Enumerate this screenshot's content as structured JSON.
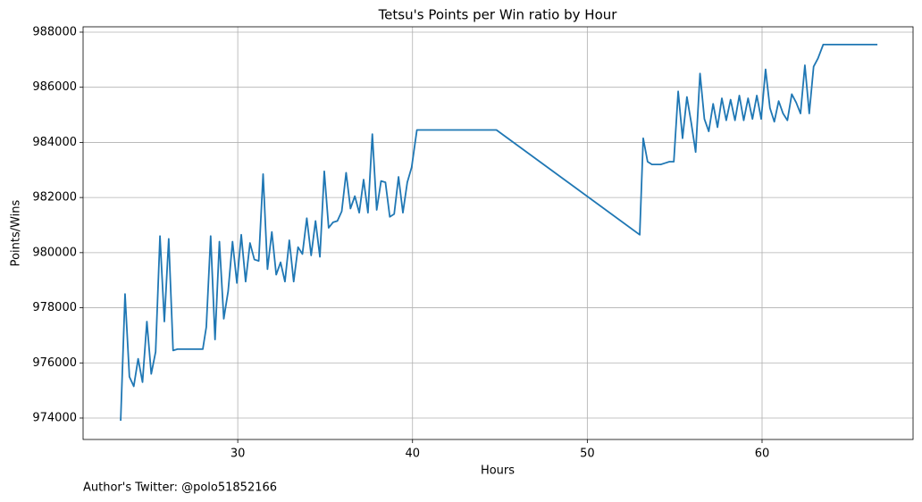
{
  "chart_data": {
    "type": "line",
    "title": "Tetsu's Points per Win ratio by Hour",
    "xlabel": "Hours",
    "ylabel": "Points/Wins",
    "caption": "Author's Twitter: @polo51852166",
    "color": "#1f77b4",
    "grid": true,
    "xlim": [
      21.15,
      68.64
    ],
    "ylim": [
      973222,
      988194
    ],
    "xticks": [
      30,
      40,
      50,
      60
    ],
    "yticks": [
      974000,
      976000,
      978000,
      980000,
      982000,
      984000,
      986000,
      988000
    ],
    "x": [
      23.3,
      23.55,
      23.8,
      24.05,
      24.3,
      24.55,
      24.8,
      25.05,
      25.3,
      25.55,
      25.8,
      26.05,
      26.3,
      26.55,
      27.0,
      28.0,
      28.2,
      28.45,
      28.7,
      28.95,
      29.2,
      29.45,
      29.7,
      29.95,
      30.2,
      30.45,
      30.7,
      30.95,
      31.2,
      31.45,
      31.7,
      31.95,
      32.2,
      32.45,
      32.7,
      32.95,
      33.2,
      33.45,
      33.7,
      33.95,
      34.2,
      34.45,
      34.7,
      34.95,
      35.2,
      35.45,
      35.7,
      35.95,
      36.2,
      36.45,
      36.7,
      36.95,
      37.2,
      37.45,
      37.7,
      37.95,
      38.2,
      38.45,
      38.7,
      38.95,
      39.2,
      39.45,
      39.7,
      39.95,
      40.25,
      44.8,
      53.0,
      53.2,
      53.45,
      53.7,
      54.2,
      54.45,
      54.7,
      54.95,
      55.2,
      55.45,
      55.7,
      55.95,
      56.2,
      56.45,
      56.7,
      56.95,
      57.2,
      57.45,
      57.7,
      57.95,
      58.2,
      58.45,
      58.7,
      58.95,
      59.2,
      59.45,
      59.7,
      59.95,
      60.2,
      60.45,
      60.7,
      60.95,
      61.2,
      61.45,
      61.7,
      61.95,
      62.2,
      62.45,
      62.7,
      62.95,
      63.2,
      63.5,
      66.6
    ],
    "values": [
      973900,
      978500,
      975500,
      975150,
      976150,
      975300,
      977500,
      975600,
      976400,
      980600,
      977500,
      980500,
      976450,
      976500,
      976500,
      976500,
      977300,
      980600,
      976850,
      980400,
      977600,
      978600,
      980400,
      978900,
      980650,
      978950,
      980350,
      979750,
      979700,
      982850,
      979400,
      980750,
      979200,
      979650,
      978950,
      980450,
      978950,
      980200,
      979950,
      981250,
      979900,
      981150,
      979850,
      982950,
      980900,
      981100,
      981150,
      981500,
      982900,
      981600,
      982050,
      981450,
      982650,
      981450,
      984300,
      981550,
      982600,
      982550,
      981300,
      981400,
      982750,
      981450,
      982550,
      983100,
      984450,
      984450,
      980650,
      984150,
      983300,
      983200,
      983200,
      983250,
      983300,
      983300,
      985850,
      984150,
      985650,
      984700,
      983650,
      986500,
      984850,
      984400,
      985400,
      984550,
      985600,
      984800,
      985550,
      984800,
      985700,
      984800,
      985600,
      984850,
      985700,
      984850,
      986650,
      985250,
      984750,
      985500,
      985050,
      984800,
      985750,
      985450,
      985050,
      986800,
      985050,
      986750,
      987050,
      987550,
      987550
    ]
  }
}
